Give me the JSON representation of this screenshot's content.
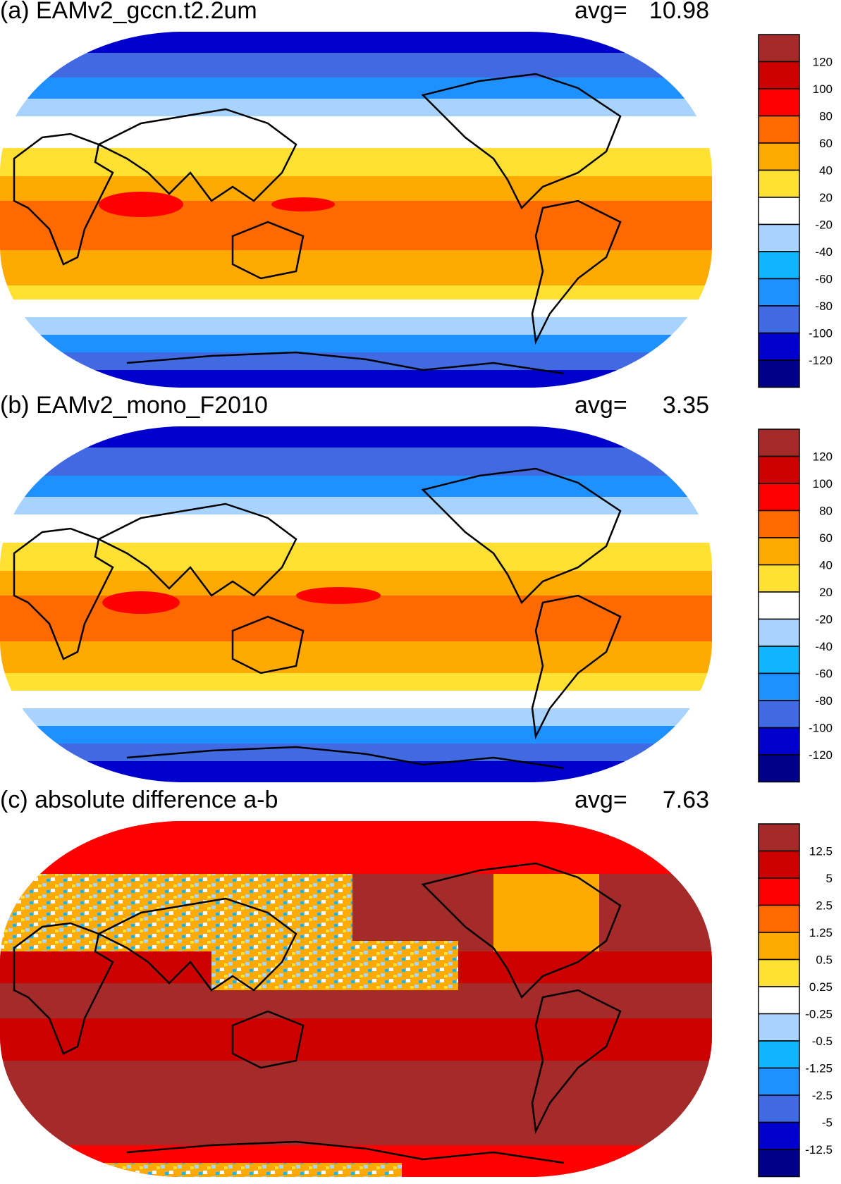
{
  "panels": [
    {
      "id": "a",
      "title": "(a) EAMv2_gccn.t2.2um",
      "avg_label": "avg=",
      "avg_value": "10.98",
      "colorbar_labels": [
        "120",
        "100",
        "80",
        "60",
        "40",
        "20",
        "-20",
        "-40",
        "-60",
        "-80",
        "-100",
        "-120"
      ],
      "colors": [
        "#a52a2a",
        "#cd0000",
        "#ff0000",
        "#ff6a00",
        "#ffaa00",
        "#ffe033",
        "#ffffff",
        "#a8d3ff",
        "#10b4ff",
        "#1e90ff",
        "#4169e1",
        "#0000cd",
        "#00008b"
      ]
    },
    {
      "id": "b",
      "title": "(b) EAMv2_mono_F2010",
      "avg_label": "avg=",
      "avg_value": "3.35",
      "colorbar_labels": [
        "120",
        "100",
        "80",
        "60",
        "40",
        "20",
        "-20",
        "-40",
        "-60",
        "-80",
        "-100",
        "-120"
      ],
      "colors": [
        "#a52a2a",
        "#cd0000",
        "#ff0000",
        "#ff6a00",
        "#ffaa00",
        "#ffe033",
        "#ffffff",
        "#a8d3ff",
        "#10b4ff",
        "#1e90ff",
        "#4169e1",
        "#0000cd",
        "#00008b"
      ]
    },
    {
      "id": "c",
      "title": "(c) absolute difference a-b",
      "avg_label": "avg=",
      "avg_value": "7.63",
      "colorbar_labels": [
        "12.5",
        "5",
        "2.5",
        "1.25",
        "0.5",
        "0.25",
        "-0.25",
        "-0.5",
        "-1.25",
        "-2.5",
        "-5",
        "-12.5"
      ],
      "colors": [
        "#a52a2a",
        "#cd0000",
        "#ff0000",
        "#ff6a00",
        "#ffaa00",
        "#ffe033",
        "#ffffff",
        "#a8d3ff",
        "#10b4ff",
        "#1e90ff",
        "#4169e1",
        "#0000cd",
        "#00008b"
      ]
    }
  ]
}
